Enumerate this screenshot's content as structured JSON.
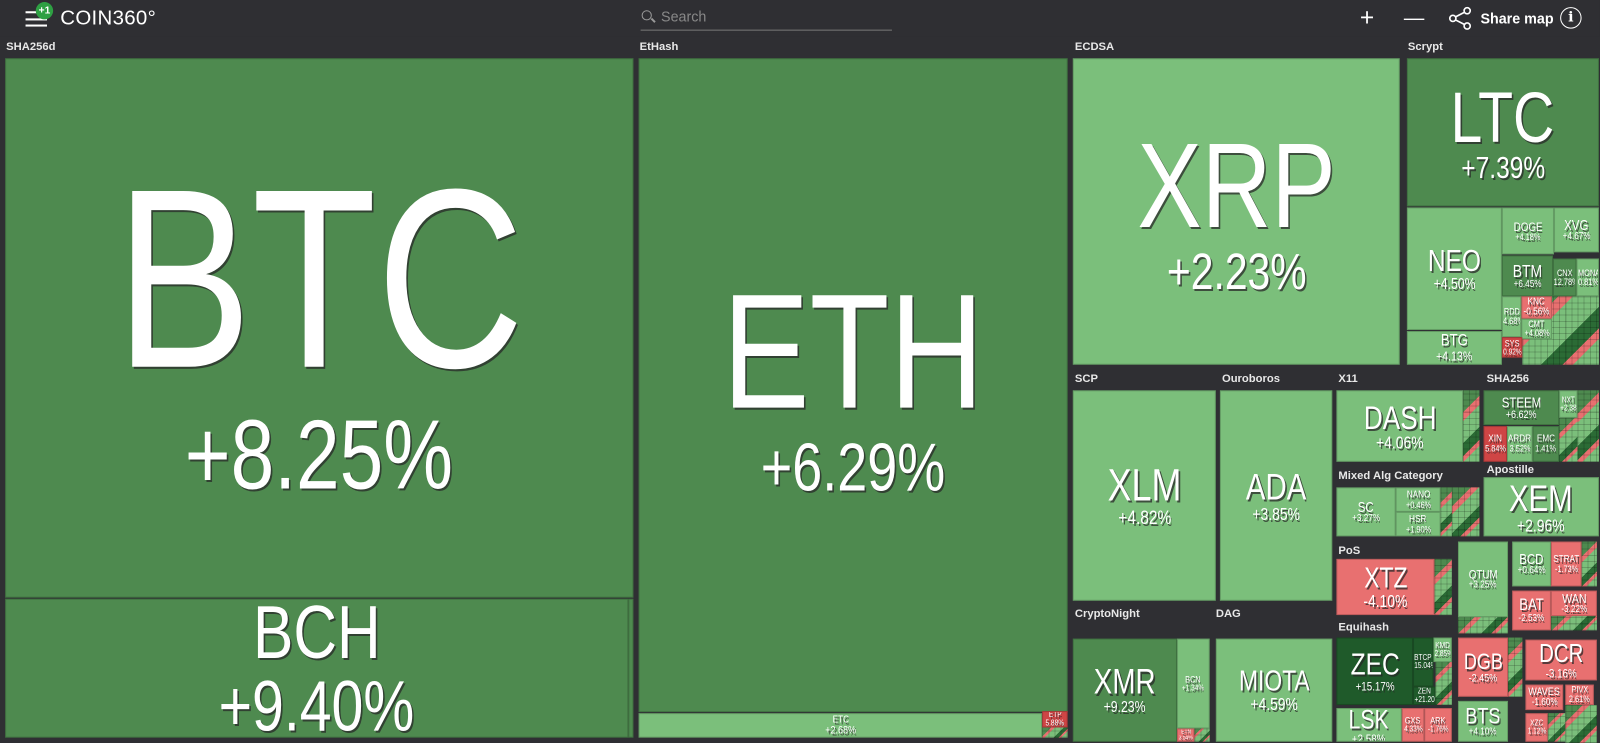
{
  "header": {
    "badge": "+1",
    "logo": "COIN360°",
    "search_placeholder": "Search",
    "zoom_in": "+",
    "zoom_out": "—",
    "share_label": "Share map",
    "info": "i"
  },
  "colors": {
    "background": "#2f2f33",
    "up_strong": "#4e8a4f",
    "up": "#7bbf7b",
    "up_very_strong": "#1f5a2a",
    "down": "#e87070",
    "down_strong": "#cf4545"
  },
  "groups": {
    "sha256d": "SHA256d",
    "ethash": "EtHash",
    "ecdsa": "ECDSA",
    "scrypt": "Scrypt",
    "scp": "SCP",
    "ouroboros": "Ouroboros",
    "x11": "X11",
    "sha256": "SHA256",
    "mixed": "Mixed Alg Category",
    "apostille": "Apostille",
    "pos": "PoS",
    "equihash": "Equihash",
    "cryptonight": "CryptoNight",
    "dag": "DAG"
  },
  "tiles": {
    "btc": {
      "symbol": "BTC",
      "change": "+8.25%"
    },
    "bch": {
      "symbol": "BCH",
      "change": "+9.40%"
    },
    "eth": {
      "symbol": "ETH",
      "change": "+6.29%"
    },
    "etc": {
      "symbol": "ETC",
      "change": "+2.68%"
    },
    "etp": {
      "symbol": "ETP",
      "change": "5.88%"
    },
    "xrp": {
      "symbol": "XRP",
      "change": "+2.23%"
    },
    "ltc": {
      "symbol": "LTC",
      "change": "+7.39%"
    },
    "neo": {
      "symbol": "NEO",
      "change": "+4.50%"
    },
    "btg": {
      "symbol": "BTG",
      "change": "+4.13%"
    },
    "doge": {
      "symbol": "DOGE",
      "change": "+4.18%"
    },
    "xvg": {
      "symbol": "XVG",
      "change": "+4.67%"
    },
    "btm": {
      "symbol": "BTM",
      "change": "+6.45%"
    },
    "cnx": {
      "symbol": "CNX",
      "change": "12.78%"
    },
    "mona": {
      "symbol": "MONA",
      "change": "0.81%"
    },
    "knc": {
      "symbol": "KNC",
      "change": "-0.56%"
    },
    "rdd": {
      "symbol": "RDD",
      "change": "4.68%"
    },
    "cmt": {
      "symbol": "CMT",
      "change": "+4.08%"
    },
    "sys": {
      "symbol": "SYS",
      "change": "0.92%"
    },
    "xlm": {
      "symbol": "XLM",
      "change": "+4.82%"
    },
    "ada": {
      "symbol": "ADA",
      "change": "+3.85%"
    },
    "dash": {
      "symbol": "DASH",
      "change": "+4.06%"
    },
    "steem": {
      "symbol": "STEEM",
      "change": "+6.62%"
    },
    "xin": {
      "symbol": "XIN",
      "change": "5.84%"
    },
    "ardr": {
      "symbol": "ARDR",
      "change": "3.52%"
    },
    "emc": {
      "symbol": "EMC",
      "change": "1.41%"
    },
    "nxt": {
      "symbol": "NXT",
      "change": "+2.38%"
    },
    "sc": {
      "symbol": "SC",
      "change": "+3.27%"
    },
    "nano": {
      "symbol": "NANO",
      "change": "+0.46%"
    },
    "hsr": {
      "symbol": "HSR",
      "change": "+1.90%"
    },
    "xem": {
      "symbol": "XEM",
      "change": "+2.96%"
    },
    "xtz": {
      "symbol": "XTZ",
      "change": "-4.10%"
    },
    "qtum": {
      "symbol": "QTUM",
      "change": "+3.25%"
    },
    "bcd": {
      "symbol": "BCD",
      "change": "+0.64%"
    },
    "strat": {
      "symbol": "STRAT",
      "change": "-1.73%"
    },
    "bat": {
      "symbol": "BAT",
      "change": "-2.53%"
    },
    "wan": {
      "symbol": "WAN",
      "change": "-3.22%"
    },
    "zec": {
      "symbol": "ZEC",
      "change": "+15.17%"
    },
    "btcp": {
      "symbol": "BTCP",
      "change": "15.04%"
    },
    "kmd": {
      "symbol": "KMD",
      "change": "2.85%"
    },
    "zen": {
      "symbol": "ZEN",
      "change": "+21.20%"
    },
    "lsk": {
      "symbol": "LSK",
      "change": "+2.58%"
    },
    "gxs": {
      "symbol": "GXS",
      "change": "4.33%"
    },
    "ark": {
      "symbol": "ARK",
      "change": "-1.76%"
    },
    "dgb": {
      "symbol": "DGB",
      "change": "-2.45%"
    },
    "dcr": {
      "symbol": "DCR",
      "change": "-3.16%"
    },
    "waves": {
      "symbol": "WAVES",
      "change": "-1.60%"
    },
    "pivx": {
      "symbol": "PIVX",
      "change": "2.61%"
    },
    "bts": {
      "symbol": "BTS",
      "change": "+4.10%"
    },
    "xzc": {
      "symbol": "XZC",
      "change": "1.12%"
    },
    "xmr": {
      "symbol": "XMR",
      "change": "+9.23%"
    },
    "bcn": {
      "symbol": "BCN",
      "change": "+1.34%"
    },
    "etn": {
      "symbol": "ETN",
      "change": "3.54%"
    },
    "miota": {
      "symbol": "MIOTA",
      "change": "+4.59%"
    }
  }
}
